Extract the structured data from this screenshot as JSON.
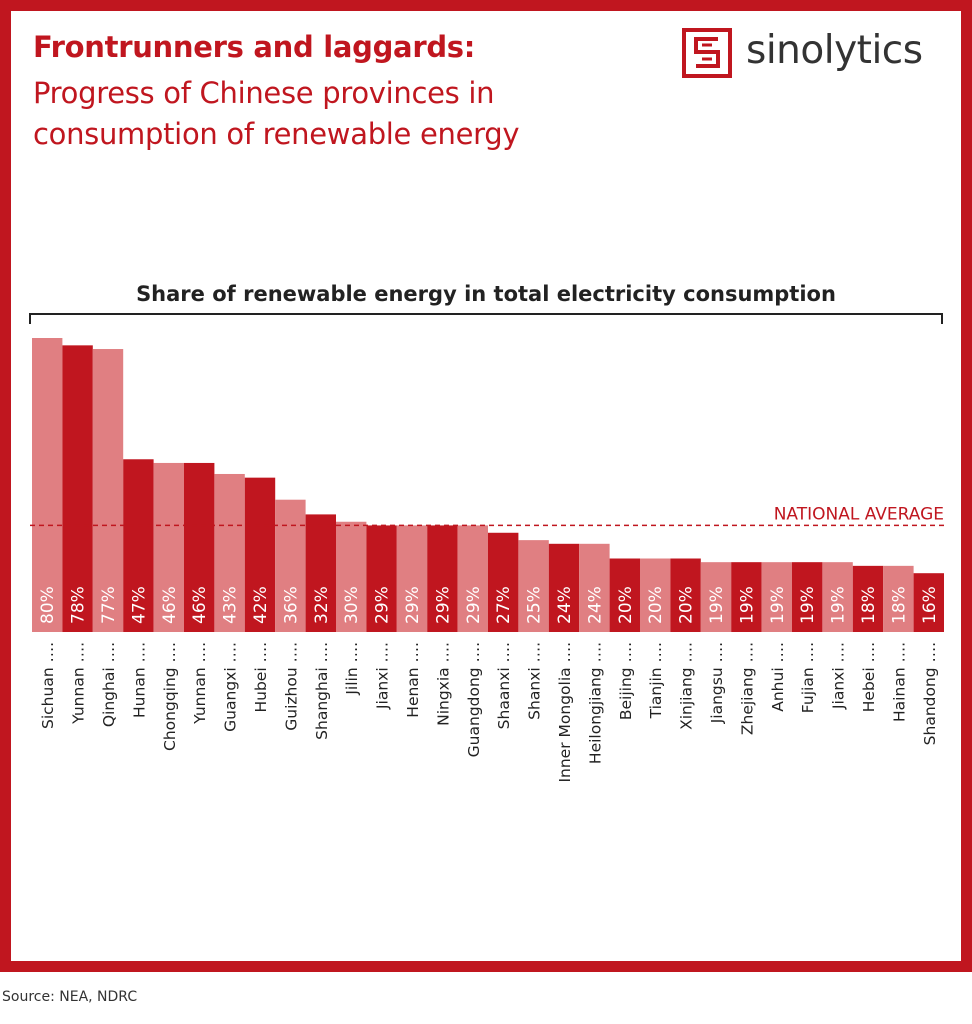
{
  "header": {
    "title": "Frontrunners and laggards:",
    "subtitle_line1": "Progress of Chinese provinces in",
    "subtitle_line2": "consumption of renewable energy"
  },
  "brand": {
    "name": "sinolytics",
    "logo_icon": "sinolytics-logo-icon"
  },
  "source": "Source: NEA, NDRC",
  "colors": {
    "accent": "#c0161f",
    "bar_dark": "#c0161f",
    "bar_light": "#e07f82",
    "text": "#222222"
  },
  "chart_data": {
    "type": "bar",
    "title": "Share of renewable energy in total electricity consumption",
    "categories": [
      "Sichuan ….",
      "Yunnan ….",
      "Qinghai ….",
      "Hunan ….",
      "Chongqing ….",
      "Yunnan ….",
      "Guangxi ….",
      "Hubei ….",
      "Guizhou ….",
      "Shanghai ….",
      "Jilin ….",
      "Jianxi ….",
      "Henan ….",
      "Ningxia ….",
      "Guangdong ….",
      "Shaanxi ….",
      "Shanxi ….",
      "Inner Mongolia ….",
      "Heilongjiang ….",
      "Beijing ….",
      "Tianjin ….",
      "Xinjiang ….",
      "Jiangsu ….",
      "Zhejiang ….",
      "Anhui ….",
      "Fujian ….",
      "Jianxi ….",
      "Hebei ….",
      "Hainan ….",
      "Shandong …."
    ],
    "values": [
      80,
      78,
      77,
      47,
      46,
      46,
      43,
      42,
      36,
      32,
      30,
      29,
      29,
      29,
      29,
      27,
      25,
      24,
      24,
      20,
      20,
      20,
      19,
      19,
      19,
      19,
      19,
      18,
      18,
      16
    ],
    "value_labels": [
      "80%",
      "78%",
      "77%",
      "47%",
      "46%",
      "46%",
      "43%",
      "42%",
      "36%",
      "32%",
      "30%",
      "29%",
      "29%",
      "29%",
      "29%",
      "27%",
      "25%",
      "24%",
      "24%",
      "20%",
      "20%",
      "20%",
      "19%",
      "19%",
      "19%",
      "19%",
      "19%",
      "18%",
      "18%",
      "16%"
    ],
    "shading": [
      "light",
      "dark",
      "light",
      "dark",
      "light",
      "dark",
      "light",
      "dark",
      "light",
      "dark",
      "light",
      "dark",
      "light",
      "dark",
      "light",
      "dark",
      "light",
      "dark",
      "light",
      "dark",
      "light",
      "dark",
      "light",
      "dark",
      "light",
      "dark",
      "light",
      "dark",
      "light",
      "dark"
    ],
    "reference_line": {
      "label": "NATIONAL AVERAGE",
      "value": 29
    },
    "ylim": [
      0,
      80
    ],
    "xlabel": "",
    "ylabel": "",
    "grid": false,
    "legend": "none"
  }
}
